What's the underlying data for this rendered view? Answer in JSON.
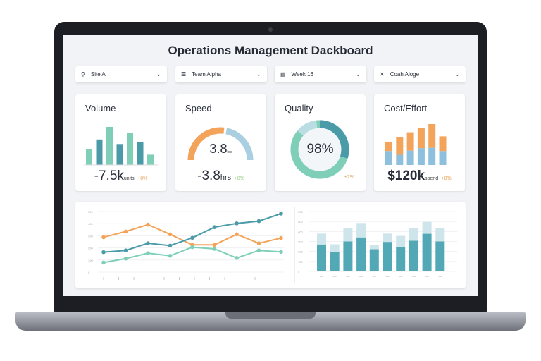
{
  "header": {
    "title": "Operations Management Dackboard"
  },
  "filters": [
    {
      "label": "Site A",
      "icon": "site-icon"
    },
    {
      "label": "Team Alpha",
      "icon": "team-icon"
    },
    {
      "label": "Week 16",
      "icon": "calendar-icon"
    },
    {
      "label": "Coah Aloge",
      "icon": "cross-icon"
    }
  ],
  "kpis": {
    "volume": {
      "title": "Volume",
      "value": "-7.5k",
      "unit": "units",
      "delta": "+8%",
      "bars": [
        0.42,
        0.67,
        1.0,
        0.55,
        0.85,
        0.61,
        0.27
      ]
    },
    "speed": {
      "title": "Speed",
      "gauge_value": "3.8",
      "gauge_unit": "hrs",
      "value": "-3.8",
      "unit": "hrs",
      "delta": "+8%",
      "gauge_fill": 0.55
    },
    "quality": {
      "title": "Quality",
      "value": "98%",
      "delta": "+2%",
      "fill": 0.98
    },
    "cost": {
      "title": "Cost/Effort",
      "value": "$120k",
      "unit": "spend",
      "delta": "+8%",
      "lower": [
        0.34,
        0.25,
        0.35,
        0.41,
        0.42,
        0.34
      ],
      "upper": [
        0.57,
        0.69,
        0.8,
        0.91,
        1.0,
        0.7
      ]
    }
  },
  "colors": {
    "teal": "#4a9aa8",
    "green": "#7fcfb8",
    "orange": "#f3a45a",
    "lightblue": "#9dc8dd"
  },
  "chart_data": [
    {
      "type": "line",
      "ylim": [
        0,
        500
      ],
      "yticks": [
        0,
        100,
        200,
        300,
        400,
        500
      ],
      "grid": true,
      "x": [
        1,
        2,
        3,
        4,
        5,
        6,
        7,
        8,
        9
      ],
      "series": [
        {
          "color": "#f3a45a",
          "values": [
            288,
            335,
            392,
            312,
            225,
            225,
            312,
            238,
            281
          ]
        },
        {
          "color": "#4a9aa8",
          "values": [
            165,
            179,
            238,
            219,
            283,
            371,
            402,
            421,
            483
          ]
        },
        {
          "color": "#7fcfb8",
          "values": [
            79,
            112,
            156,
            135,
            206,
            192,
            117,
            179,
            167
          ]
        }
      ]
    },
    {
      "type": "bar",
      "stacked": true,
      "ylim": [
        0,
        600
      ],
      "yticks": [
        0,
        100,
        200,
        300,
        400,
        500,
        600
      ],
      "grid": true,
      "series": [
        {
          "color": "#52a8b5",
          "values": [
            269,
            194,
            300,
            340,
            222,
            295,
            241,
            307,
            377,
            300
          ]
        },
        {
          "color": "#cfe5ec",
          "values": [
            110,
            78,
            135,
            145,
            43,
            84,
            115,
            128,
            119,
            133
          ]
        }
      ]
    }
  ]
}
